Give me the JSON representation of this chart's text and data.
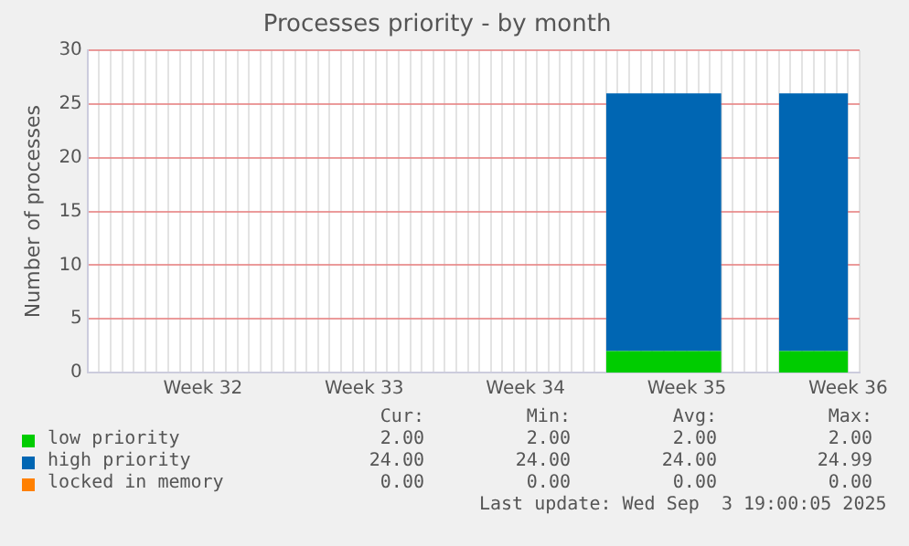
{
  "chart_data": {
    "type": "area",
    "title": "Processes priority - by month",
    "ylabel": "Number of processes",
    "stacked": true,
    "categories": [
      null,
      null,
      null,
      null,
      null,
      null,
      null,
      null,
      null,
      null,
      "Week 32",
      null,
      null,
      null,
      null,
      null,
      null,
      null,
      null,
      null,
      null,
      null,
      null,
      null,
      "Week 33",
      null,
      null,
      null,
      null,
      null,
      null,
      null,
      null,
      null,
      null,
      null,
      null,
      null,
      "Week 34",
      null,
      null,
      null,
      null,
      null,
      null,
      null,
      null,
      null,
      null,
      null,
      null,
      null,
      "Week 35",
      null,
      null,
      null,
      null,
      null,
      null,
      null,
      null,
      null,
      null,
      null,
      null,
      null,
      "Week 36",
      null
    ],
    "ylim": [
      0,
      30
    ],
    "yticks": [
      0,
      5,
      10,
      15,
      20,
      25,
      30
    ],
    "grid": true,
    "legend": "bottom",
    "series": [
      {
        "name": "low priority",
        "color": "#00cc00",
        "values": [
          null,
          null,
          null,
          null,
          null,
          null,
          null,
          null,
          null,
          null,
          null,
          null,
          null,
          null,
          null,
          null,
          null,
          null,
          null,
          null,
          null,
          null,
          null,
          null,
          null,
          null,
          null,
          null,
          null,
          null,
          null,
          null,
          null,
          null,
          null,
          null,
          null,
          null,
          null,
          null,
          null,
          null,
          null,
          null,
          null,
          2,
          2,
          2,
          2,
          2,
          2,
          2,
          2,
          2,
          2,
          2,
          null,
          null,
          null,
          null,
          2,
          2,
          2,
          2,
          2,
          2,
          2,
          null
        ]
      },
      {
        "name": "high priority",
        "color": "#0066b3",
        "values": [
          null,
          null,
          null,
          null,
          null,
          null,
          null,
          null,
          null,
          null,
          null,
          null,
          null,
          null,
          null,
          null,
          null,
          null,
          null,
          null,
          null,
          null,
          null,
          null,
          null,
          null,
          null,
          null,
          null,
          null,
          null,
          null,
          null,
          null,
          null,
          null,
          null,
          null,
          null,
          null,
          null,
          null,
          null,
          null,
          null,
          24,
          24,
          24,
          24,
          24,
          24,
          24,
          24,
          24,
          24,
          24,
          null,
          null,
          null,
          null,
          24,
          24,
          24,
          24,
          24,
          24,
          24,
          null
        ]
      },
      {
        "name": "locked in memory",
        "color": "#ff8000",
        "values": [
          null,
          null,
          null,
          null,
          null,
          null,
          null,
          null,
          null,
          null,
          null,
          null,
          null,
          null,
          null,
          null,
          null,
          null,
          null,
          null,
          null,
          null,
          null,
          null,
          null,
          null,
          null,
          null,
          null,
          null,
          null,
          null,
          null,
          null,
          null,
          null,
          null,
          null,
          null,
          null,
          null,
          null,
          null,
          null,
          null,
          null,
          null,
          null,
          null,
          null,
          null,
          null,
          null,
          null,
          null,
          null,
          null,
          null,
          null,
          null,
          null,
          null,
          null,
          null,
          null,
          null,
          null,
          null
        ]
      }
    ],
    "annotations": [
      "Cur:",
      "Min:",
      "Avg:",
      "Max:",
      "2.00",
      "2.00",
      "2.00",
      "2.00",
      "24.00",
      "24.00",
      "24.00",
      "24.99",
      "0.00",
      "0.00",
      "0.00",
      "0.00",
      "Last update: Wed Sep  3 19:00:05 2025"
    ]
  }
}
